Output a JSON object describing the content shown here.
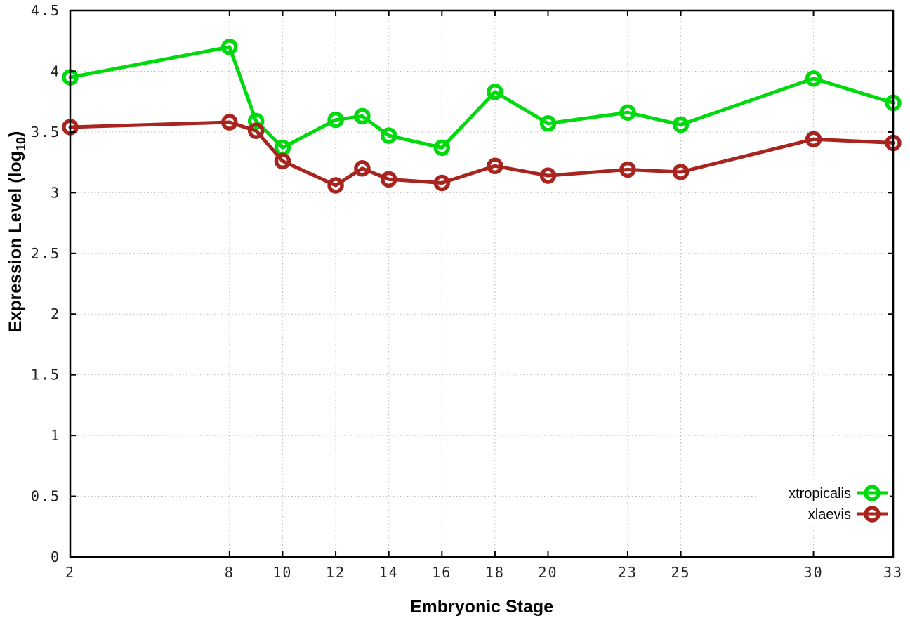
{
  "chart_data": {
    "type": "line",
    "title": "",
    "xlabel": "Embryonic Stage",
    "ylabel": "Expression Level (log10)",
    "ylabel_parts": {
      "main": "Expression Level (log",
      "sub": "10",
      "end": ")"
    },
    "x": [
      2,
      8,
      9,
      10,
      12,
      13,
      14,
      16,
      18,
      20,
      23,
      25,
      30,
      33
    ],
    "x_tick_labels": [
      "2",
      "8",
      "10",
      "12",
      "14",
      "16",
      "18",
      "20",
      "23",
      "25",
      "30",
      "33"
    ],
    "x_tick_values": [
      2,
      8,
      10,
      12,
      14,
      16,
      18,
      20,
      23,
      25,
      30,
      33
    ],
    "y_tick_labels": [
      "0",
      "0.5",
      "1",
      "1.5",
      "2",
      "2.5",
      "3",
      "3.5",
      "4",
      "4.5"
    ],
    "y_tick_values": [
      0,
      0.5,
      1,
      1.5,
      2,
      2.5,
      3,
      3.5,
      4,
      4.5
    ],
    "xlim": [
      2,
      33
    ],
    "ylim": [
      0,
      4.5
    ],
    "grid": true,
    "legend_position": "bottom-right",
    "marker": "open-circle",
    "series": [
      {
        "name": "xtropicalis",
        "color": "#00d90e",
        "values": [
          3.95,
          4.2,
          3.59,
          3.37,
          3.6,
          3.63,
          3.47,
          3.37,
          3.83,
          3.57,
          3.66,
          3.56,
          3.94,
          3.74
        ]
      },
      {
        "name": "xlaevis",
        "color": "#a8241f",
        "values": [
          3.54,
          3.58,
          3.51,
          3.26,
          3.06,
          3.2,
          3.11,
          3.08,
          3.22,
          3.14,
          3.19,
          3.17,
          3.44,
          3.41
        ]
      }
    ],
    "colors": {
      "background": "#ffffff",
      "axis": "#000000",
      "grid": "#b9b9b9",
      "tick_text": "#1f1f1f"
    }
  }
}
